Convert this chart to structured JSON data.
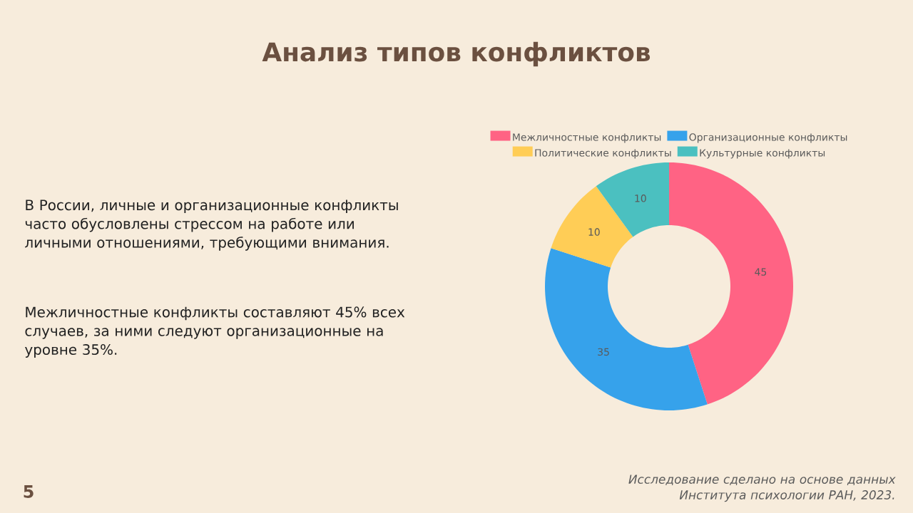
{
  "chart_data": {
    "type": "donut",
    "title": "Анализ типов конфликтов",
    "categories": [
      "Межличностные конфликты",
      "Организационные конфликты",
      "Политические конфликты",
      "Культурные конфликты"
    ],
    "values": [
      45,
      35,
      10,
      10
    ],
    "colors": [
      "#ff6384",
      "#36a2eb",
      "#ffcd56",
      "#4bc0c0"
    ],
    "data_labels": true,
    "legend": "top",
    "annotations": [
      "В России, личные и организационные конфликты часто обусловлены стрессом на работе или личными отношениями, требующими внимания.",
      "Межличностные конфликты составляют 45% всех случаев, за ними следуют организационные на уровне 35%.",
      "Исследование сделано на основе данных Института психологии РАН, 2023.",
      "5"
    ]
  }
}
